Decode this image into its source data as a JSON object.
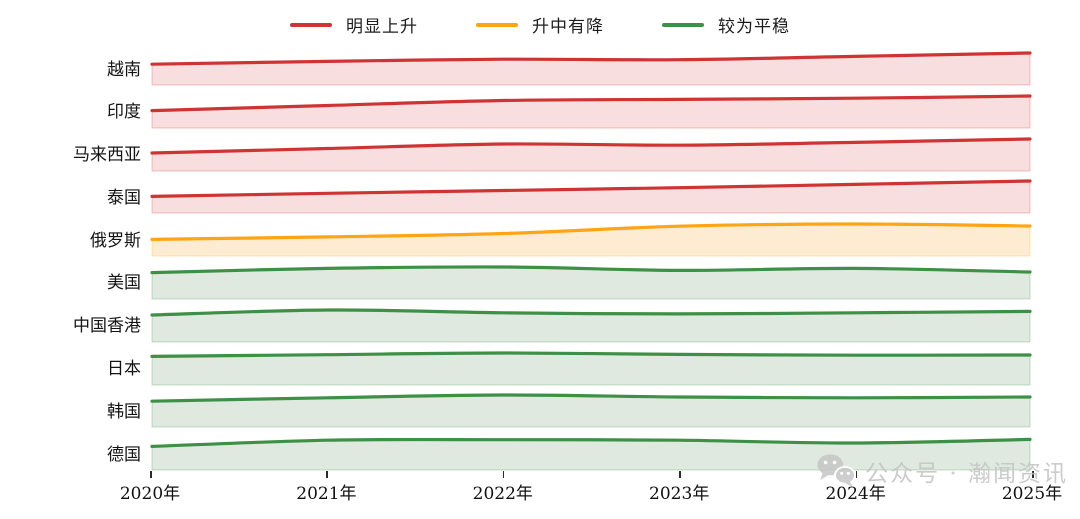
{
  "legend": {
    "items": [
      {
        "label": "明显上升",
        "color": "#cf3434"
      },
      {
        "label": "升中有降",
        "color": "#ffa415"
      },
      {
        "label": "较为平稳",
        "color": "#3e9046"
      }
    ]
  },
  "watermark": {
    "text": "公众号 · 瀚闻资讯",
    "icon": "wechat-icon",
    "color": "#c6c6c6"
  },
  "chart_data": {
    "type": "area",
    "variant": "ridgeline-small-multiples",
    "title": "",
    "xlabel": "",
    "ylabel": "",
    "grid": false,
    "legend_position": "top-center",
    "x": [
      2020,
      2021,
      2022,
      2023,
      2024,
      2025
    ],
    "x_tick_labels": [
      "2020年",
      "2021年",
      "2022年",
      "2023年",
      "2024年",
      "2025年"
    ],
    "value_note": "no y-axis shown; values are relative trend levels (0-1) read from band heights",
    "series": [
      {
        "name": "越南",
        "group": "明显上升",
        "color": "#cf3434",
        "fill": "#f8dede",
        "values": [
          0.6,
          0.7,
          0.78,
          0.76,
          0.88,
          1.0
        ]
      },
      {
        "name": "印度",
        "group": "明显上升",
        "color": "#cf3434",
        "fill": "#f8dede",
        "values": [
          0.48,
          0.66,
          0.84,
          0.88,
          0.92,
          1.0
        ]
      },
      {
        "name": "马来西亚",
        "group": "明显上升",
        "color": "#cf3434",
        "fill": "#f8dede",
        "values": [
          0.5,
          0.66,
          0.82,
          0.78,
          0.88,
          1.0
        ]
      },
      {
        "name": "泰国",
        "group": "明显上升",
        "color": "#cf3434",
        "fill": "#f8dede",
        "values": [
          0.45,
          0.56,
          0.66,
          0.76,
          0.88,
          1.0
        ]
      },
      {
        "name": "俄罗斯",
        "group": "升中有降",
        "color": "#ffa415",
        "fill": "#fdecd2",
        "values": [
          0.45,
          0.54,
          0.66,
          0.92,
          1.0,
          0.93
        ]
      },
      {
        "name": "美国",
        "group": "较为平稳",
        "color": "#3e9046",
        "fill": "#dfe9df",
        "values": [
          0.8,
          0.95,
          1.0,
          0.88,
          0.95,
          0.82
        ]
      },
      {
        "name": "中国香港",
        "group": "较为平稳",
        "color": "#3e9046",
        "fill": "#dfe9df",
        "values": [
          0.82,
          1.0,
          0.9,
          0.86,
          0.9,
          0.95
        ]
      },
      {
        "name": "日本",
        "group": "较为平稳",
        "color": "#3e9046",
        "fill": "#dfe9df",
        "values": [
          0.88,
          0.94,
          1.0,
          0.95,
          0.92,
          0.93
        ]
      },
      {
        "name": "韩国",
        "group": "较为平稳",
        "color": "#3e9046",
        "fill": "#dfe9df",
        "values": [
          0.78,
          0.9,
          1.0,
          0.93,
          0.9,
          0.93
        ]
      },
      {
        "name": "德国",
        "group": "较为平稳",
        "color": "#3e9046",
        "fill": "#dfe9df",
        "values": [
          0.7,
          0.92,
          0.94,
          0.92,
          0.82,
          0.95
        ]
      }
    ]
  }
}
